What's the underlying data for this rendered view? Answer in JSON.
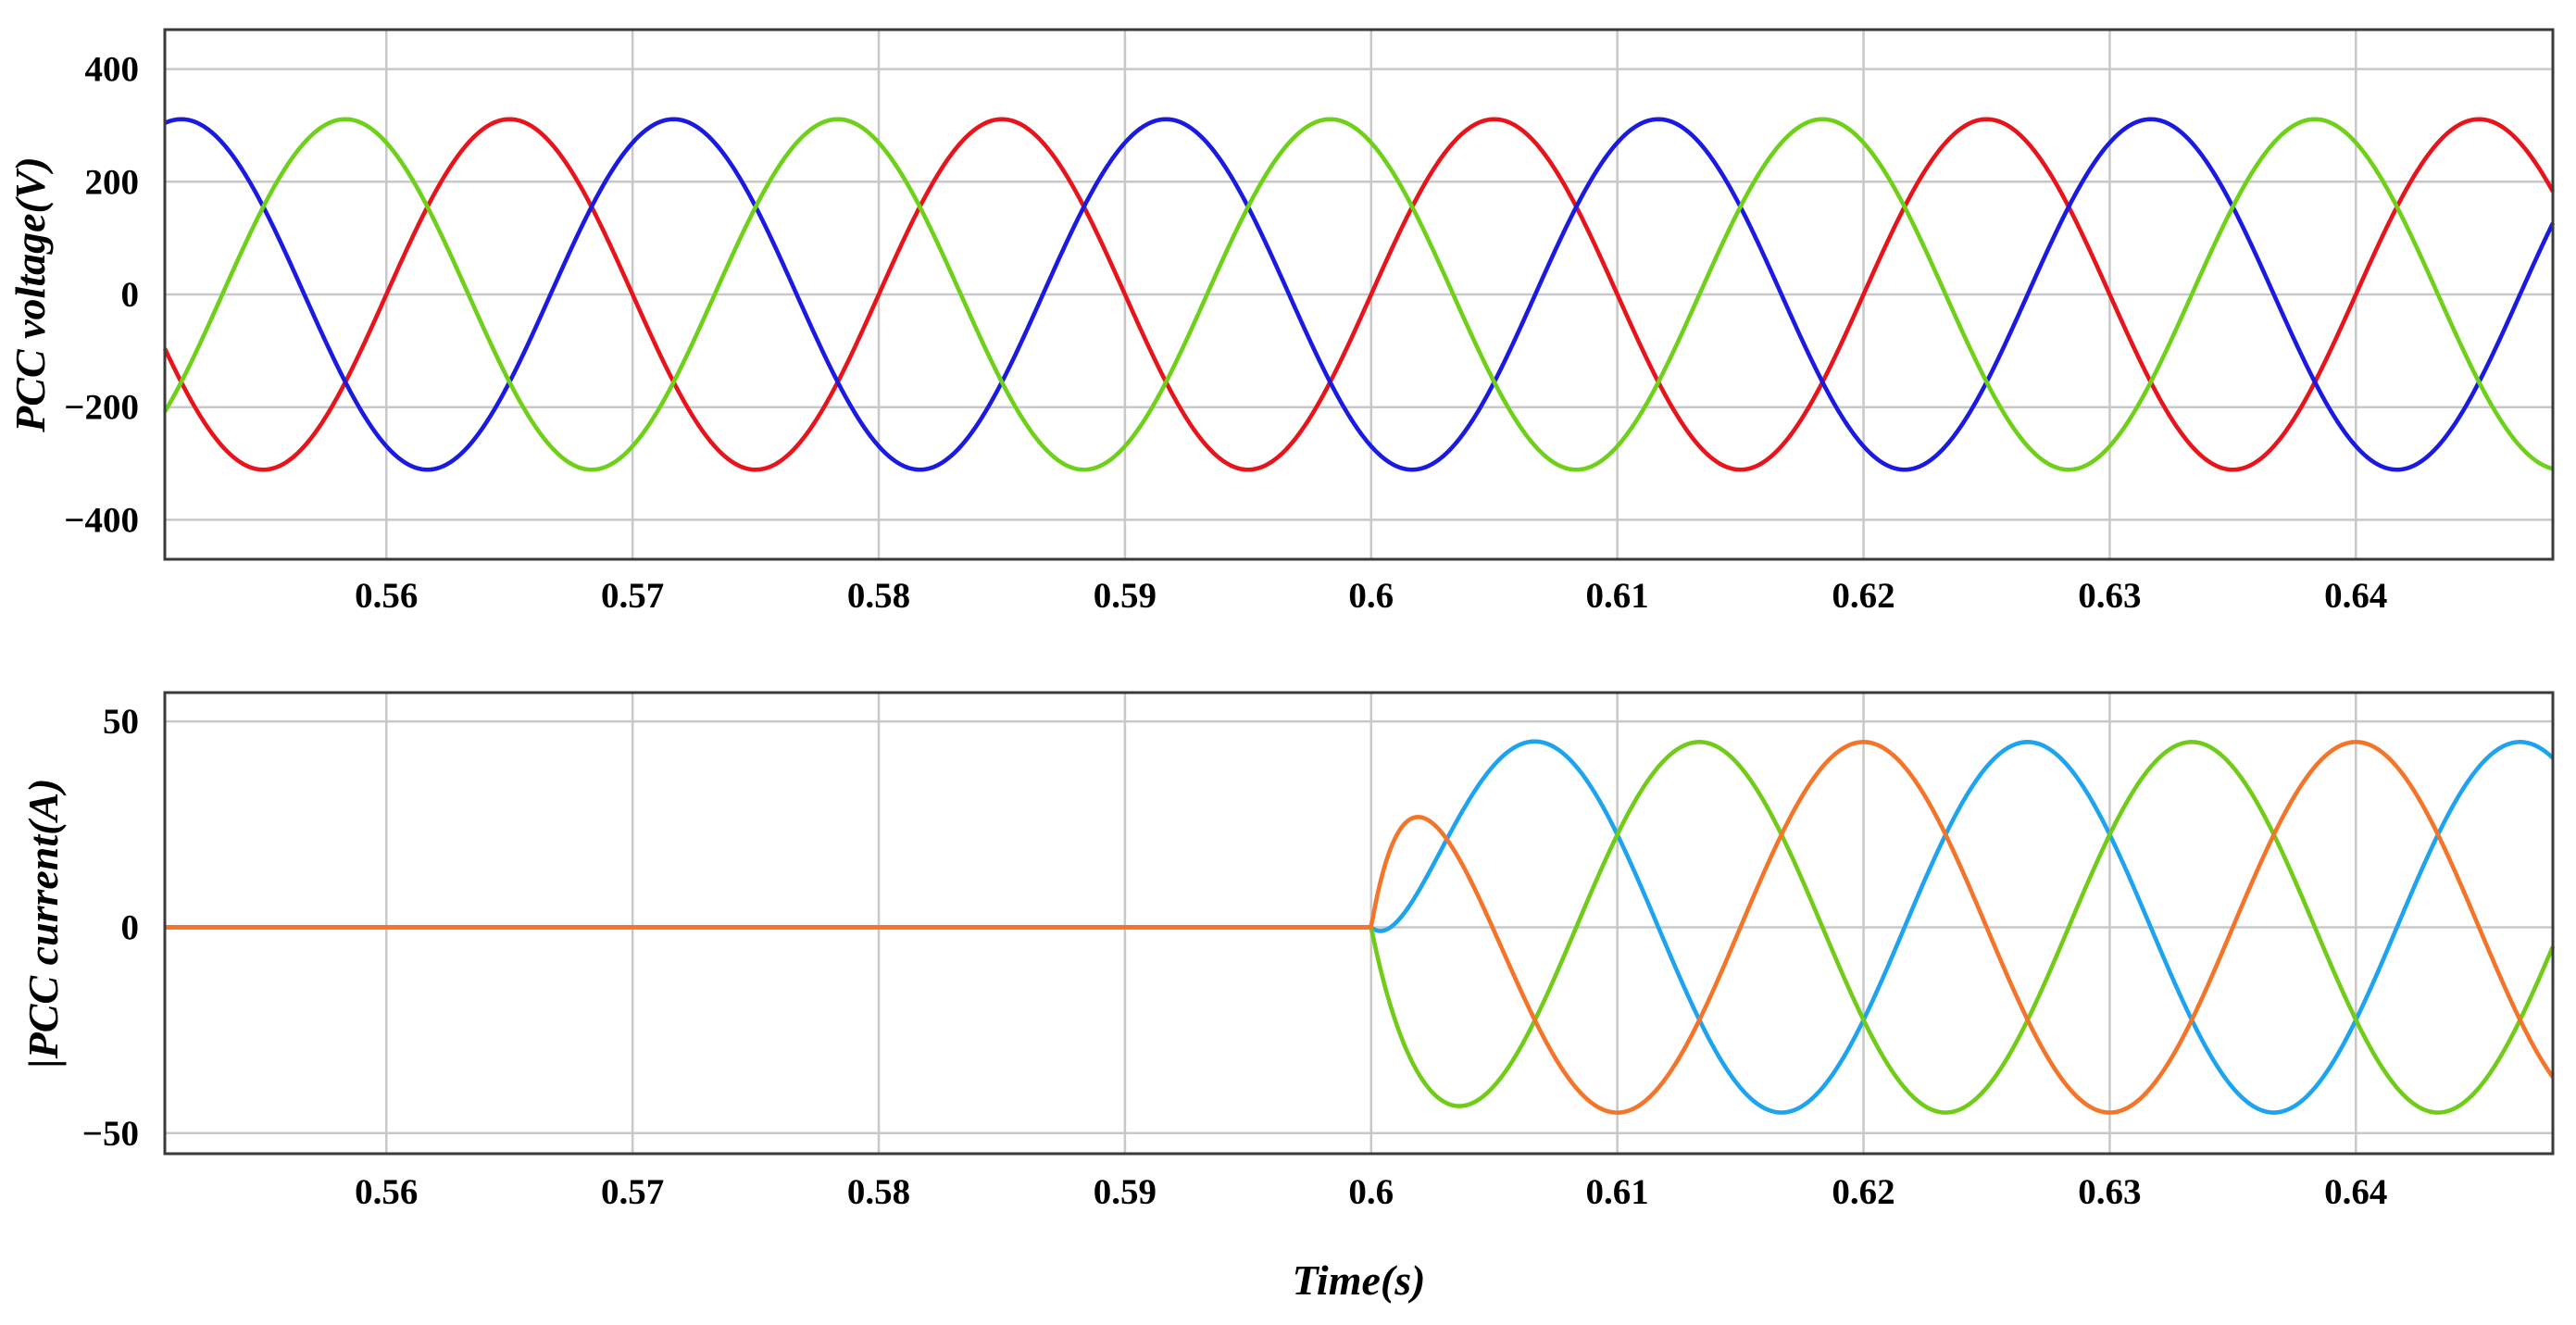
{
  "chart_data": [
    {
      "type": "line",
      "ylabel": "PCC voltage(V)",
      "xlabel": "",
      "xlim": [
        0.551,
        0.648
      ],
      "ylim": [
        -470,
        470
      ],
      "xticks": [
        0.56,
        0.57,
        0.58,
        0.59,
        0.6,
        0.61,
        0.62,
        0.63,
        0.64
      ],
      "xtick_labels": [
        "0.56",
        "0.57",
        "0.58",
        "0.59",
        "0.6",
        "0.61",
        "0.62",
        "0.63",
        "0.64"
      ],
      "yticks": [
        400,
        200,
        0,
        -200,
        -400
      ],
      "ytick_labels": [
        "400",
        "200",
        "0",
        "−200",
        "−400"
      ],
      "grid": true,
      "frequency_hz": 50,
      "series": [
        {
          "color": "#e8141c",
          "amplitude": 311,
          "phase_deg": 0,
          "onset": null
        },
        {
          "color": "#1a1ae0",
          "amplitude": 311,
          "phase_deg": -120,
          "onset": null
        },
        {
          "color": "#6fd01a",
          "amplitude": 311,
          "phase_deg": 120,
          "onset": null
        }
      ]
    },
    {
      "type": "line",
      "ylabel": "|PCC current(A)",
      "xlabel": "Time(s)",
      "xlim": [
        0.551,
        0.648
      ],
      "ylim": [
        -55,
        57
      ],
      "xticks": [
        0.56,
        0.57,
        0.58,
        0.59,
        0.6,
        0.61,
        0.62,
        0.63,
        0.64
      ],
      "xtick_labels": [
        "0.56",
        "0.57",
        "0.58",
        "0.59",
        "0.6",
        "0.61",
        "0.62",
        "0.63",
        "0.64"
      ],
      "yticks": [
        50,
        0,
        -50
      ],
      "ytick_labels": [
        "50",
        "0",
        "−50"
      ],
      "grid": true,
      "frequency_hz": 50,
      "onset_time": 0.6,
      "transient_tau_s": 0.0013,
      "series": [
        {
          "color": "#1ea4ee",
          "amplitude": 45,
          "phase_deg": -30
        },
        {
          "color": "#70cc18",
          "amplitude": 45,
          "phase_deg": -150
        },
        {
          "color": "#f4742a",
          "amplitude": 45,
          "phase_deg": 90
        }
      ]
    }
  ]
}
